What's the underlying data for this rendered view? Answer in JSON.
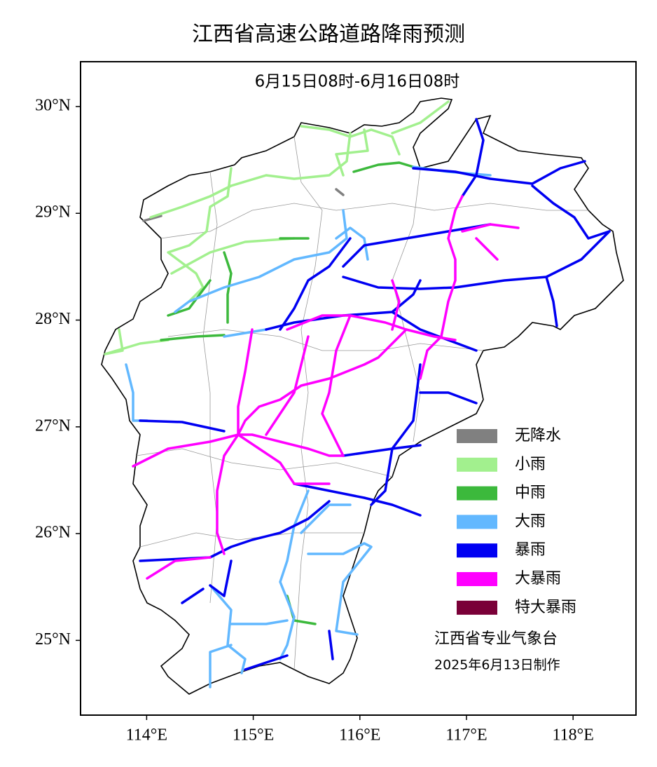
{
  "title": "江西省高速公路道路降雨预测",
  "subtitle": "6月15日08时-6月16日08时",
  "map": {
    "xlim": [
      113.38,
      118.59
    ],
    "ylim": [
      24.3,
      30.42
    ],
    "xticks": [
      {
        "value": 114,
        "label": "114°E"
      },
      {
        "value": 115,
        "label": "115°E"
      },
      {
        "value": 116,
        "label": "116°E"
      },
      {
        "value": 117,
        "label": "117°E"
      },
      {
        "value": 118,
        "label": "118°E"
      }
    ],
    "yticks": [
      {
        "value": 30,
        "label": "30°N"
      },
      {
        "value": 29,
        "label": "29°N"
      },
      {
        "value": 28,
        "label": "28°N"
      },
      {
        "value": 27,
        "label": "27°N"
      },
      {
        "value": 26,
        "label": "26°N"
      },
      {
        "value": 25,
        "label": "25°N"
      }
    ]
  },
  "legend": [
    {
      "label": "无降水",
      "color": "#808080"
    },
    {
      "label": "小雨",
      "color": "#a2f08e"
    },
    {
      "label": "中雨",
      "color": "#3cb93c"
    },
    {
      "label": "大雨",
      "color": "#62b8ff"
    },
    {
      "label": "暴雨",
      "color": "#0000f2"
    },
    {
      "label": "大暴雨",
      "color": "#ff00ff"
    },
    {
      "label": "特大暴雨",
      "color": "#7a0038"
    }
  ],
  "credit": [
    "江西省专业气象台",
    "2025年6月13日制作"
  ]
}
